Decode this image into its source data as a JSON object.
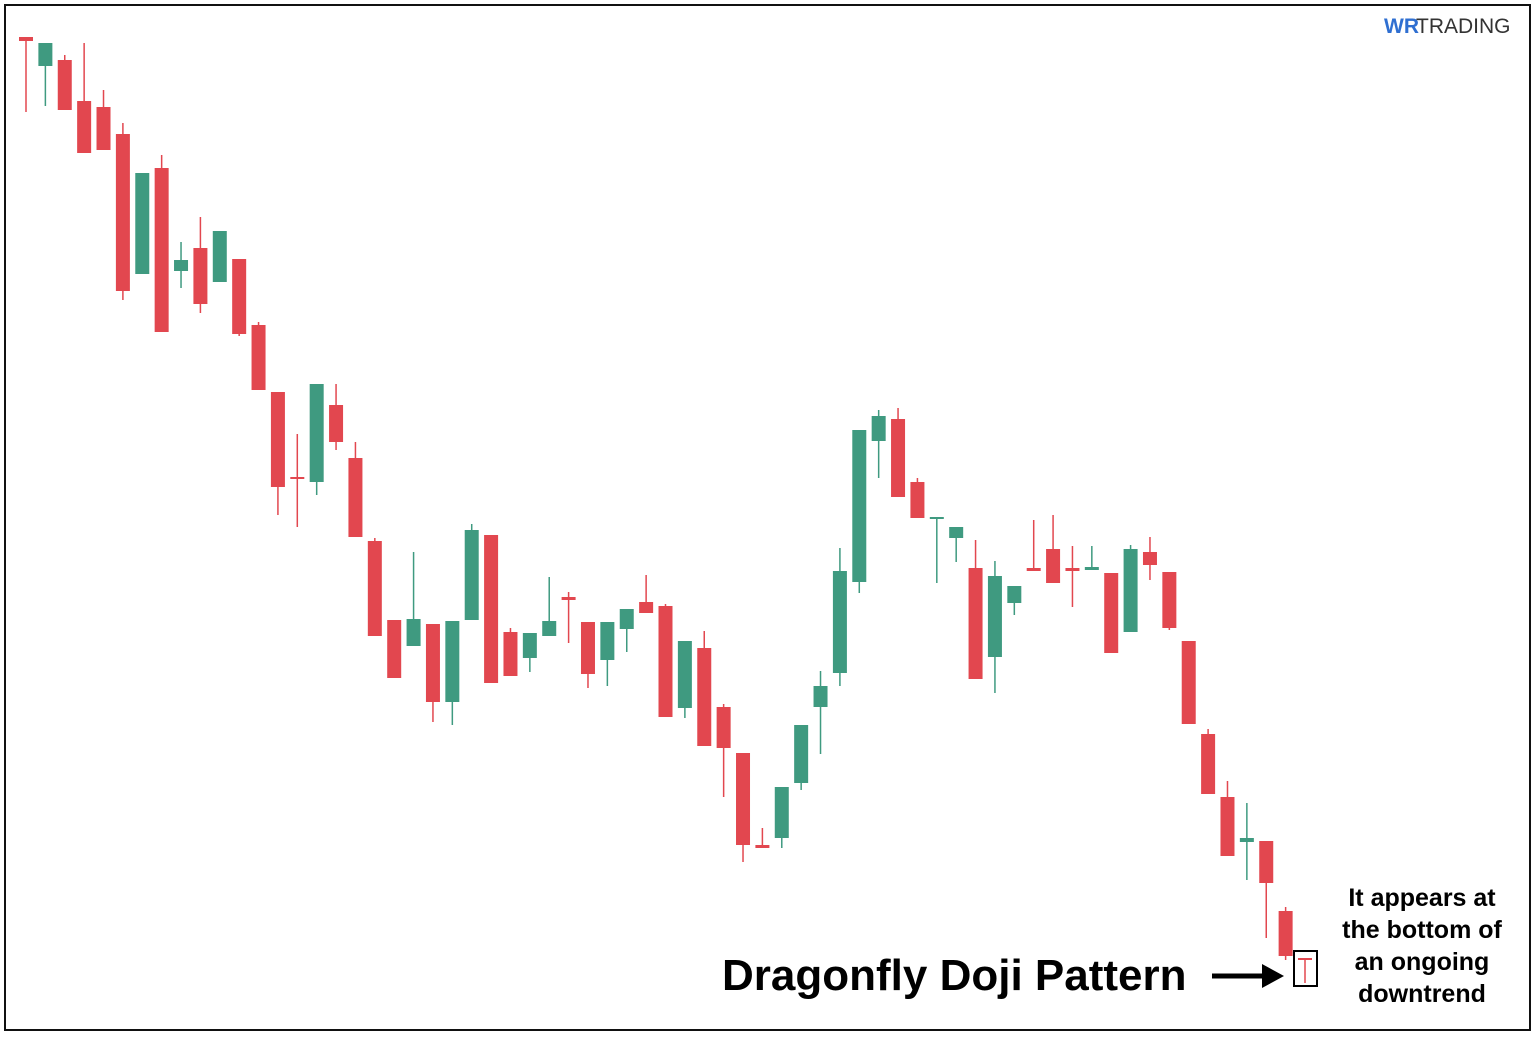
{
  "chart_data": {
    "type": "candlestick",
    "logo": {
      "mark": "WR",
      "text": "TRADING"
    },
    "annotation": "Dragonfly Doji Pattern",
    "note": [
      "It appears at",
      "the bottom of",
      "an ongoing",
      "downtrend"
    ],
    "up_color": "#3f9a80",
    "down_color": "#e2474f",
    "ylim": [
      0,
      1037
    ],
    "open": [
      1000,
      971,
      977,
      936,
      930,
      903,
      763,
      869,
      766,
      789,
      755,
      778,
      712,
      645,
      560,
      555,
      632,
      579,
      496,
      417,
      391,
      413,
      335,
      417,
      502,
      405,
      379,
      401,
      440,
      415,
      377,
      408,
      435,
      431,
      329,
      389,
      330,
      284,
      192,
      199,
      254,
      330,
      364,
      455,
      596,
      618,
      555,
      518,
      499,
      469,
      380,
      434,
      469,
      488,
      469,
      467,
      464,
      405,
      485,
      465,
      396,
      303,
      240,
      195,
      196,
      126,
      79
    ],
    "high": [
      1000,
      994,
      982,
      994,
      947,
      914,
      864,
      882,
      795,
      820,
      806,
      778,
      715,
      645,
      603,
      653,
      653,
      595,
      499,
      417,
      485,
      413,
      416,
      513,
      502,
      409,
      404,
      460,
      445,
      415,
      415,
      428,
      462,
      433,
      396,
      406,
      333,
      284,
      209,
      250,
      312,
      366,
      489,
      607,
      627,
      629,
      559,
      520,
      510,
      497,
      476,
      451,
      517,
      522,
      491,
      491,
      464,
      492,
      500,
      465,
      396,
      308,
      256,
      234,
      196,
      130,
      79
    ],
    "low": [
      925,
      931,
      927,
      884,
      887,
      737,
      763,
      705,
      749,
      724,
      755,
      701,
      647,
      522,
      510,
      542,
      587,
      500,
      401,
      359,
      391,
      315,
      312,
      417,
      354,
      361,
      365,
      401,
      394,
      349,
      351,
      385,
      424,
      320,
      319,
      291,
      240,
      175,
      189,
      189,
      247,
      283,
      351,
      444,
      559,
      540,
      519,
      454,
      475,
      358,
      344,
      422,
      466,
      454,
      430,
      467,
      384,
      405,
      457,
      407,
      313,
      243,
      181,
      157,
      99,
      77,
      54
    ],
    "close": [
      996,
      994,
      927,
      884,
      887,
      746,
      864,
      705,
      777,
      733,
      806,
      703,
      647,
      550,
      558,
      653,
      595,
      500,
      401,
      359,
      418,
      335,
      416,
      507,
      354,
      361,
      404,
      416,
      437,
      363,
      415,
      428,
      424,
      320,
      396,
      291,
      289,
      192,
      189,
      250,
      312,
      351,
      466,
      607,
      621,
      540,
      519,
      520,
      510,
      358,
      461,
      451,
      466,
      454,
      466,
      470,
      384,
      488,
      472,
      409,
      313,
      243,
      181,
      199,
      154,
      81,
      78
    ]
  }
}
